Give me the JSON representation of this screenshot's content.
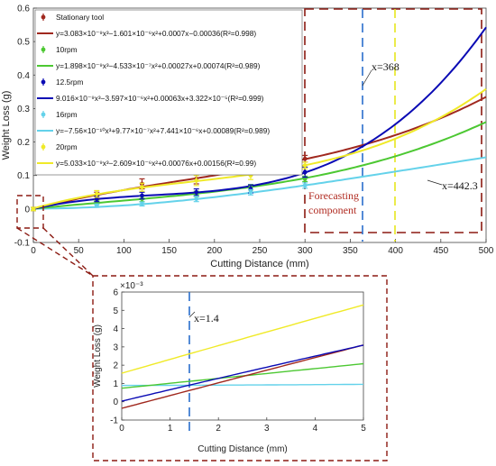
{
  "colors": {
    "stationary": "#a0281e",
    "rpm10": "#4cc832",
    "rpm12_5": "#0a0ab4",
    "rpm16": "#64d2ea",
    "rpm20": "#f0ea28",
    "dashed_brown": "#8b1a12",
    "dashed_blue": "#2a6ecc",
    "dashed_yellow": "#e6e61e"
  },
  "chart_data": [
    {
      "type": "line",
      "xlabel": "Cutting Distance (mm)",
      "ylabel": "Weight Loss (g)",
      "xlim": [
        0,
        500
      ],
      "ylim": [
        -0.1,
        0.6
      ],
      "xticks": [
        "0",
        "50",
        "100",
        "150",
        "200",
        "250",
        "300",
        "350",
        "400",
        "450",
        "500"
      ],
      "yticks": [
        "-0.1",
        "0",
        "0.1",
        "0.2",
        "0.3",
        "0.4",
        "0.5",
        "0.6"
      ],
      "grid": false,
      "legend_position": "top-left",
      "legend": [
        "Stationary tool",
        "y=3.083×10⁻⁹x³−1.601×10⁻⁶x²+0.0007x−0.00036(R²=0.998)",
        "10rpm",
        "y=1.898×10⁻⁹x³−4.533×10⁻⁷x²+0.00027x+0.00074(R²=0.989)",
        "12.5rpm",
        "9.016×10⁻⁹x³−3.597×10⁻⁶x²+0.00063x+3.322×10⁻⁵(R²=0.999)",
        "16rpm",
        "y=−7.56×10⁻¹⁰x³+9.77×10⁻⁷x²+7.441×10⁻⁶x+0.00089(R²=0.989)",
        "20rpm",
        "y=5.033×10⁻⁹x³−2.609×10⁻⁶x²+0.00076x+0.00156(R²=0.99)"
      ],
      "series": [
        {
          "name": "Stationary tool",
          "coefficients": [
            3.083e-09,
            -1.601e-06,
            0.0007,
            -0.00036
          ],
          "points_x": [
            0,
            70,
            120,
            180,
            240,
            300
          ],
          "points_y": [
            0,
            0.04,
            0.075,
            0.09,
            0.115,
            0.15
          ],
          "errors": [
            0.005,
            0.01,
            0.015,
            0.015,
            0.012,
            0.01
          ]
        },
        {
          "name": "10rpm",
          "coefficients": [
            1.898e-09,
            -4.533e-07,
            0.00027,
            0.00074
          ],
          "points_x": [
            0,
            70,
            120,
            180,
            240,
            300
          ],
          "points_y": [
            0,
            0.02,
            0.03,
            0.045,
            0.065,
            0.09
          ],
          "errors": [
            0.004,
            0.006,
            0.008,
            0.008,
            0.008,
            0.008
          ]
        },
        {
          "name": "12.5rpm",
          "coefficients": [
            9.016e-09,
            -3.597e-06,
            0.00063,
            3.322e-05
          ],
          "points_x": [
            0,
            70,
            120,
            180,
            240,
            300
          ],
          "points_y": [
            0,
            0.03,
            0.04,
            0.05,
            0.06,
            0.11
          ],
          "errors": [
            0.004,
            0.008,
            0.01,
            0.01,
            0.012,
            0.015
          ]
        },
        {
          "name": "16rpm",
          "coefficients": [
            -7.56e-10,
            9.77e-07,
            7.441e-06,
            0.00089
          ],
          "points_x": [
            0,
            70,
            120,
            180,
            240,
            300
          ],
          "points_y": [
            0,
            0.01,
            0.015,
            0.03,
            0.05,
            0.07
          ],
          "errors": [
            0.004,
            0.005,
            0.006,
            0.008,
            0.008,
            0.008
          ]
        },
        {
          "name": "20rpm",
          "coefficients": [
            5.033e-09,
            -2.609e-06,
            0.00076,
            0.00156
          ],
          "points_x": [
            0,
            70,
            120,
            180,
            240,
            300
          ],
          "points_y": [
            0,
            0.045,
            0.065,
            0.085,
            0.1,
            0.13
          ],
          "errors": [
            0.005,
            0.01,
            0.012,
            0.015,
            0.012,
            0.01
          ]
        }
      ],
      "annotations": [
        {
          "text": "x=368",
          "x": 368
        },
        {
          "text": "x=442.3",
          "x": 442.3
        },
        {
          "text": "Forecasting",
          "region_start_x": 300
        },
        {
          "text": "component",
          "region_start_x": 300
        }
      ]
    },
    {
      "type": "line",
      "xlabel": "Cutting Distance (mm)",
      "ylabel": "Weight Loss (g)",
      "xlim": [
        0,
        5
      ],
      "ylim": [
        -0.001,
        0.006
      ],
      "xticks": [
        "0",
        "1",
        "2",
        "3",
        "4",
        "5"
      ],
      "yticks": [
        "-1",
        "0",
        "1",
        "2",
        "3",
        "4",
        "5",
        "6"
      ],
      "yscale_label": "×10⁻³",
      "grid": false,
      "annotations": [
        {
          "text": "x=1.4",
          "x": 1.4
        }
      ]
    }
  ]
}
